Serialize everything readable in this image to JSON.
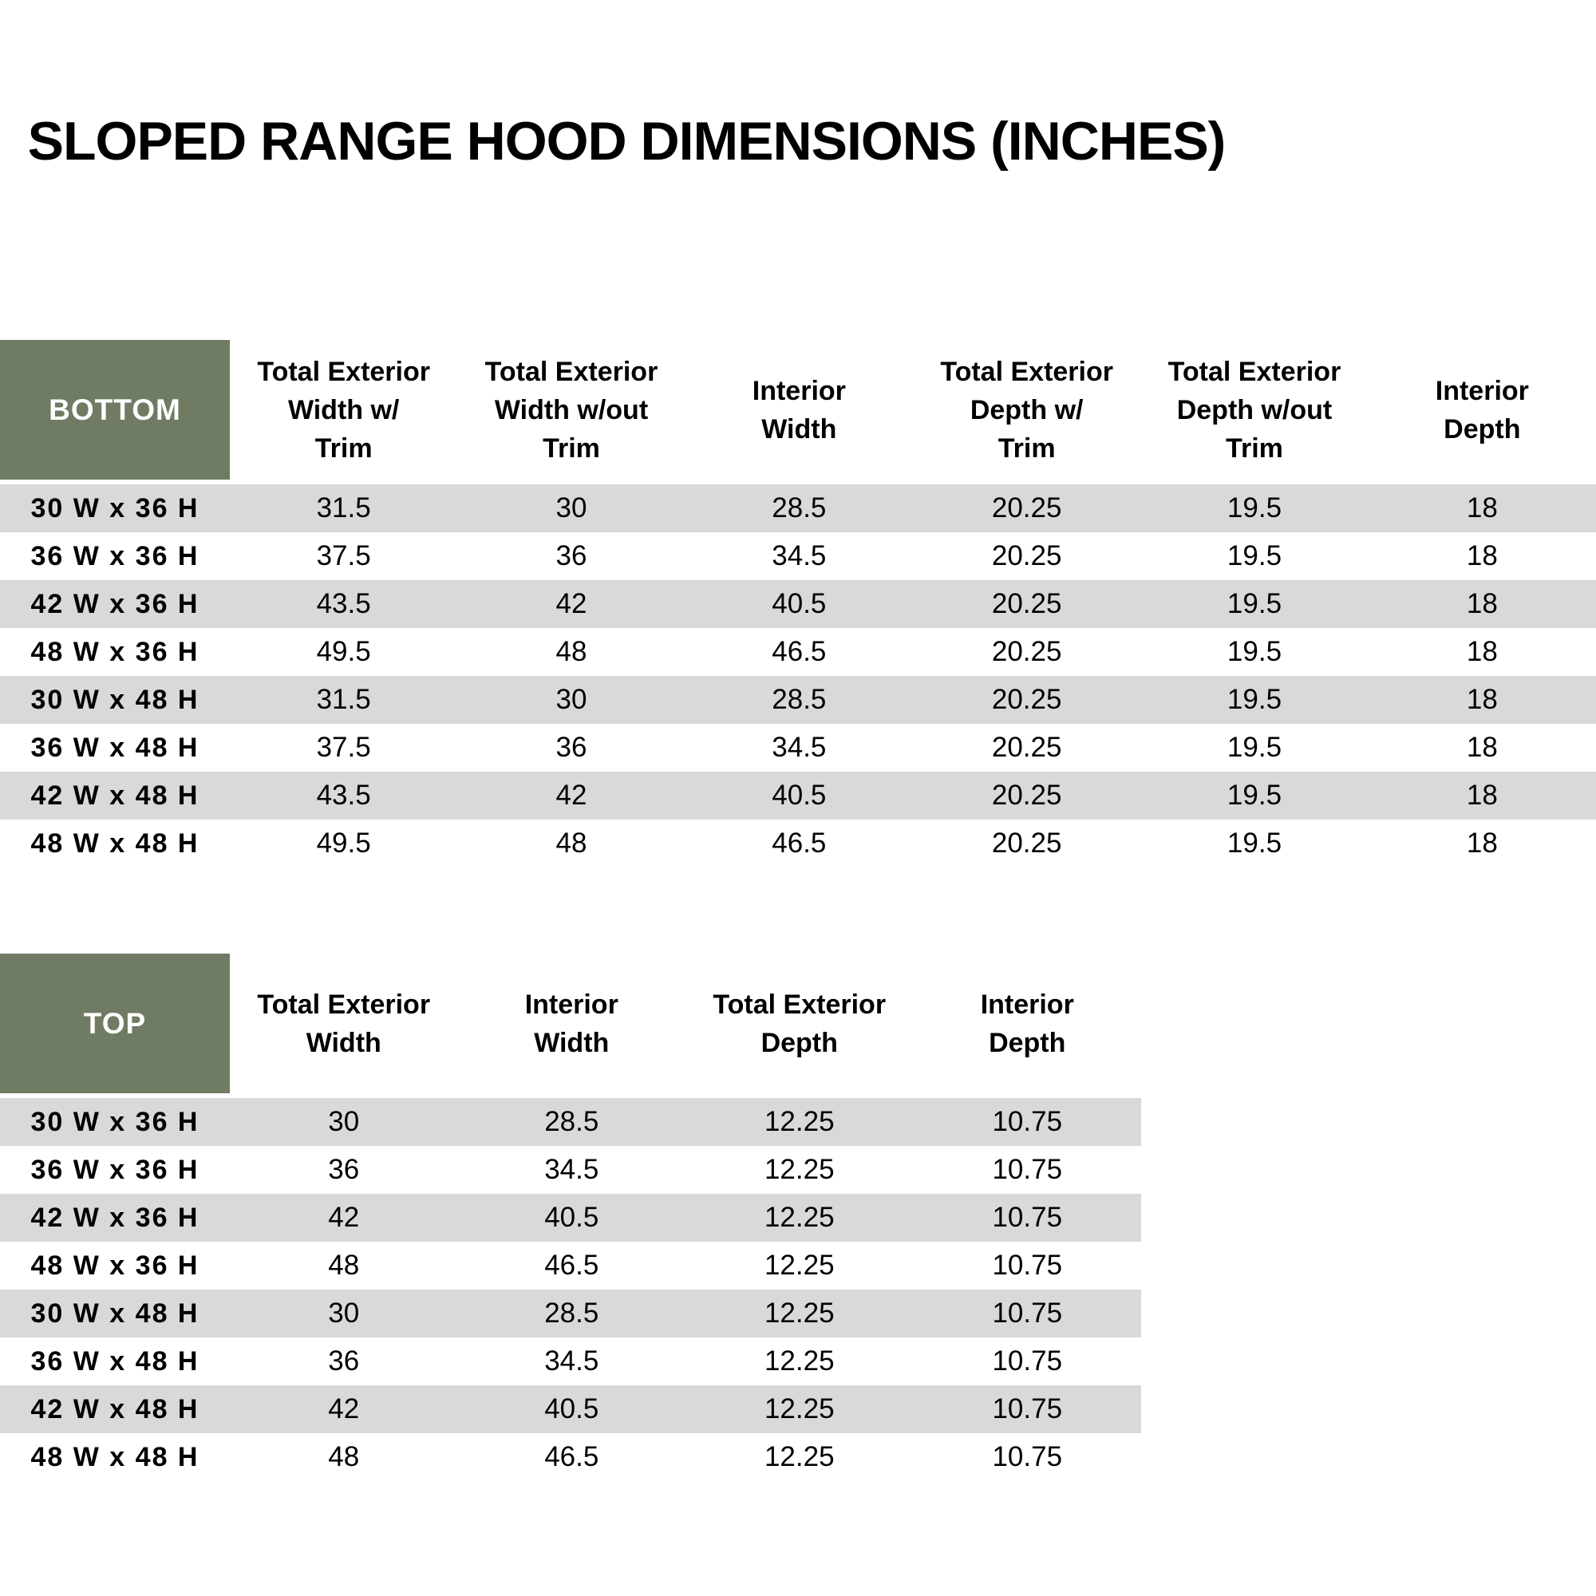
{
  "title": "SLOPED RANGE HOOD DIMENSIONS (INCHES)",
  "colors": {
    "header_green": "#6F7B63",
    "stripe_gray": "#D9D9D9",
    "header_text": "#FFFFFF",
    "body_text": "#000000"
  },
  "bottom_table": {
    "corner_label": "BOTTOM",
    "headers": [
      {
        "lines": [
          "Total Exterior",
          "Width w/",
          "Trim"
        ]
      },
      {
        "lines": [
          "Total Exterior",
          "Width w/out",
          "Trim"
        ]
      },
      {
        "lines": [
          "Interior",
          "Width"
        ]
      },
      {
        "lines": [
          "Total Exterior",
          "Depth w/",
          "Trim"
        ]
      },
      {
        "lines": [
          "Total Exterior",
          "Depth w/out",
          "Trim"
        ]
      },
      {
        "lines": [
          "Interior",
          "Depth"
        ]
      }
    ],
    "rows": [
      {
        "label": "30 W x 36 H",
        "values": [
          "31.5",
          "30",
          "28.5",
          "20.25",
          "19.5",
          "18"
        ]
      },
      {
        "label": "36 W x 36 H",
        "values": [
          "37.5",
          "36",
          "34.5",
          "20.25",
          "19.5",
          "18"
        ]
      },
      {
        "label": "42 W x 36 H",
        "values": [
          "43.5",
          "42",
          "40.5",
          "20.25",
          "19.5",
          "18"
        ]
      },
      {
        "label": "48 W x 36 H",
        "values": [
          "49.5",
          "48",
          "46.5",
          "20.25",
          "19.5",
          "18"
        ]
      },
      {
        "label": "30 W x 48 H",
        "values": [
          "31.5",
          "30",
          "28.5",
          "20.25",
          "19.5",
          "18"
        ]
      },
      {
        "label": "36 W x 48 H",
        "values": [
          "37.5",
          "36",
          "34.5",
          "20.25",
          "19.5",
          "18"
        ]
      },
      {
        "label": "42 W x 48 H",
        "values": [
          "43.5",
          "42",
          "40.5",
          "20.25",
          "19.5",
          "18"
        ]
      },
      {
        "label": "48 W x 48 H",
        "values": [
          "49.5",
          "48",
          "46.5",
          "20.25",
          "19.5",
          "18"
        ]
      }
    ]
  },
  "top_table": {
    "corner_label": "TOP",
    "headers": [
      {
        "lines": [
          "Total Exterior",
          "Width"
        ]
      },
      {
        "lines": [
          "Interior",
          "Width"
        ]
      },
      {
        "lines": [
          "Total Exterior",
          "Depth"
        ]
      },
      {
        "lines": [
          "Interior",
          "Depth"
        ]
      }
    ],
    "rows": [
      {
        "label": "30 W x 36 H",
        "values": [
          "30",
          "28.5",
          "12.25",
          "10.75"
        ]
      },
      {
        "label": "36 W x 36 H",
        "values": [
          "36",
          "34.5",
          "12.25",
          "10.75"
        ]
      },
      {
        "label": "42 W x 36 H",
        "values": [
          "42",
          "40.5",
          "12.25",
          "10.75"
        ]
      },
      {
        "label": "48 W x 36 H",
        "values": [
          "48",
          "46.5",
          "12.25",
          "10.75"
        ]
      },
      {
        "label": "30 W x 48 H",
        "values": [
          "30",
          "28.5",
          "12.25",
          "10.75"
        ]
      },
      {
        "label": "36 W x 48 H",
        "values": [
          "36",
          "34.5",
          "12.25",
          "10.75"
        ]
      },
      {
        "label": "42 W x 48 H",
        "values": [
          "42",
          "40.5",
          "12.25",
          "10.75"
        ]
      },
      {
        "label": "48 W x 48 H",
        "values": [
          "48",
          "46.5",
          "12.25",
          "10.75"
        ]
      }
    ]
  }
}
